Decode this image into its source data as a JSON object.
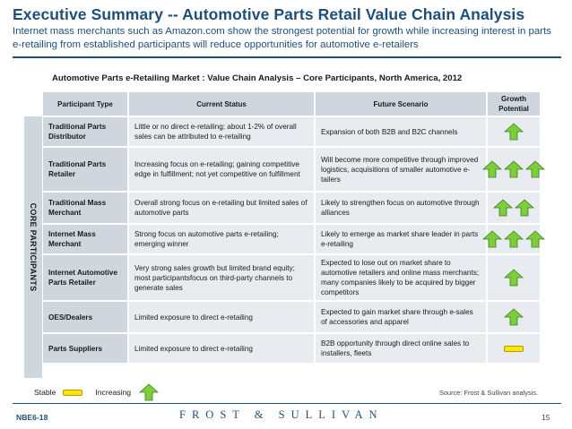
{
  "header": {
    "title": "Executive Summary -- Automotive Parts Retail Value Chain Analysis",
    "subtitle": "Internet mass merchants such as Amazon.com show the strongest potential for growth while increasing interest in parts e-retailing from established participants will reduce opportunities for automotive e-retailers"
  },
  "table": {
    "title": "Automotive Parts e-Retailing Market : Value Chain Analysis – Core Participants, North America, 2012",
    "side_label": "CORE PARTICIPANTS",
    "columns": [
      "Participant Type",
      "Current Status",
      "Future Scenario",
      "Growth Potential"
    ],
    "rows": [
      {
        "type": "Traditional  Parts Distributor",
        "status": "Little or no direct e-retailing; about 1-2% of overall sales can be attributed to e-retailing",
        "future": "Expansion of both B2B and B2C channels",
        "growth": "increasing",
        "arrows": 1,
        "height": 34
      },
      {
        "type": "Traditional Parts Retailer",
        "status": "Increasing focus on e-retailing; gaining competitive edge in fulfillment; not yet competitive on fulfillment",
        "future": "Will become more competitive through improved logistics, acquisitions of smaller automotive e-tailers",
        "growth": "increasing",
        "arrows": 3,
        "height": 50
      },
      {
        "type": "Traditional Mass Merchant",
        "status": "Overall strong focus on e-retailing but limited sales of automotive parts",
        "future": "Likely to strengthen focus on automotive through alliances",
        "growth": "increasing",
        "arrows": 2,
        "height": 36
      },
      {
        "type": "Internet Mass Merchant",
        "status": "Strong focus on automotive parts e-retailing; emerging winner",
        "future": "Likely to emerge as market share leader in parts e-retailing",
        "growth": "increasing",
        "arrows": 3,
        "height": 34
      },
      {
        "type": "Internet Automotive Parts Retailer",
        "status": "Very strong sales growth but limited brand equity; most participantsfocus on third-party channels to generate sales",
        "future": "Expected to lose out on market share to automotive retailers and online mass merchants; many companies likely to be acquired by bigger competitors",
        "growth": "increasing",
        "arrows": 1,
        "height": 52
      },
      {
        "type": "OES/Dealers",
        "status": "Limited exposure to direct e-retailing",
        "future": "Expected to gain market share through e-sales of accessories and apparel",
        "growth": "increasing",
        "arrows": 1,
        "height": 36
      },
      {
        "type": "Parts Suppliers",
        "status": "Limited exposure to direct e-retailing",
        "future": "B2B opportunity through direct online sales to installers, fleets",
        "growth": "stable",
        "arrows": 0,
        "height": 34
      }
    ]
  },
  "legend": {
    "stable_label": "Stable",
    "increasing_label": "Increasing",
    "stable_color": "#ffe600",
    "increasing_color": "#7ccf3a"
  },
  "source": "Source: Frost & Sullivan analysis.",
  "footer": {
    "code": "NBE6-18",
    "brand": "FROST & SULLIVAN",
    "page": "15"
  }
}
